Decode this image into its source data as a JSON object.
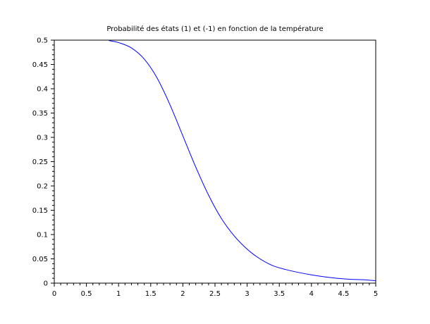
{
  "chart_data": {
    "type": "line",
    "title": "Probabilité des états (1) et (-1) en fonction de la température",
    "xlabel": "",
    "ylabel": "",
    "xlim": [
      0,
      5
    ],
    "ylim": [
      0,
      0.5
    ],
    "x_ticks": [
      "0",
      "0.5",
      "1",
      "1.5",
      "2",
      "2.5",
      "3",
      "3.5",
      "4",
      "4.5",
      "5"
    ],
    "y_ticks": [
      "0",
      "0.05",
      "0.1",
      "0.15",
      "0.2",
      "0.25",
      "0.3",
      "0.35",
      "0.4",
      "0.45",
      "0.5"
    ],
    "grid": false,
    "series": [
      {
        "name": "",
        "color": "#0000ff",
        "x": [
          0.85,
          1.0,
          1.2,
          1.4,
          1.6,
          1.8,
          2.0,
          2.2,
          2.4,
          2.6,
          2.8,
          3.0,
          3.2,
          3.4,
          3.6,
          3.8,
          4.0,
          4.2,
          4.4,
          4.6,
          4.8,
          5.0
        ],
        "y": [
          0.499,
          0.495,
          0.484,
          0.461,
          0.422,
          0.367,
          0.303,
          0.239,
          0.181,
          0.133,
          0.097,
          0.07,
          0.05,
          0.036,
          0.028,
          0.022,
          0.017,
          0.013,
          0.01,
          0.008,
          0.007,
          0.005
        ]
      }
    ]
  }
}
